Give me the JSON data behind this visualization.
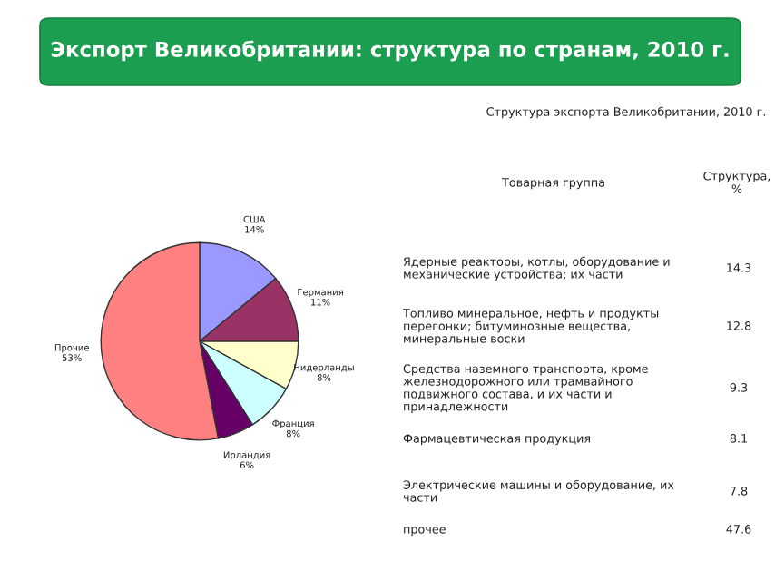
{
  "chart_data": [
    {
      "type": "pie",
      "title": "Экспорт Великобритании: структура по странам, 2010 г.",
      "categories": [
        "США",
        "Германия",
        "Нидерланды",
        "Франция",
        "Ирландия",
        "Прочие"
      ],
      "values": [
        14,
        11,
        8,
        8,
        6,
        53
      ],
      "value_labels": [
        "14%",
        "11%",
        "8%",
        "8%",
        "6%",
        "53%"
      ],
      "colors": [
        "#9999ff",
        "#993366",
        "#ffffcc",
        "#ccffff",
        "#660066",
        "#ff8080"
      ]
    },
    {
      "type": "other",
      "title": "Структура экспорта Великобритании, 2010 г.",
      "xlabel": "Товарная группа",
      "ylabel": "Структура, %",
      "categories": [
        "Ядерные реакторы, котлы, оборудование и механические устройства; их части",
        "Топливо минеральное, нефть и продукты перегонки; битуминозные вещества, минеральные воски",
        "Средства наземного транспорта, кроме железнодорожного или трамвайного подвижного состава, и их части и принадлежности",
        "Фармацевтическая продукция",
        "Электрические машины и оборудование, их части",
        "прочее"
      ],
      "values": [
        14.3,
        12.8,
        9.3,
        8.1,
        7.8,
        47.6
      ],
      "data_labels": true
    }
  ]
}
